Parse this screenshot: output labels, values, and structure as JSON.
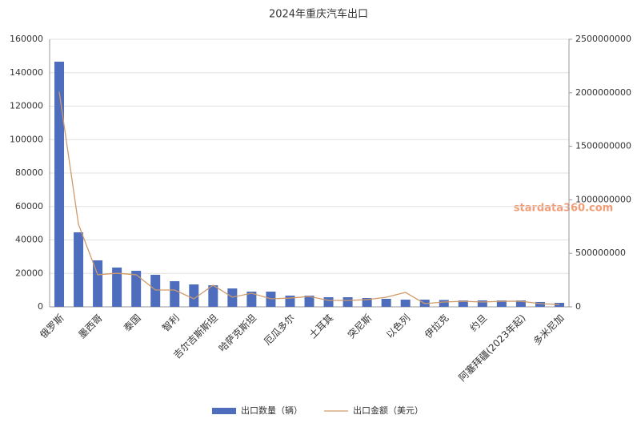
{
  "chart_data": {
    "type": "bar_line",
    "title": "2024年重庆汽车出口",
    "watermark": "stardata360.com",
    "categories": [
      "俄罗斯",
      null,
      "墨西哥",
      null,
      "泰国",
      null,
      "智利",
      null,
      "吉尔吉斯斯坦",
      null,
      "哈萨克斯坦",
      null,
      "厄瓜多尔",
      null,
      "土耳其",
      null,
      "突尼斯",
      null,
      "以色列",
      null,
      "伊拉克",
      null,
      "约旦",
      null,
      "阿塞拜疆(2023年起)",
      null,
      "多米尼加"
    ],
    "series": [
      {
        "name": "出口数量（辆）",
        "type": "bar",
        "color": "#4e6ebd",
        "axis": "y",
        "values": [
          146600,
          44550,
          27800,
          23500,
          21550,
          19160,
          15330,
          13400,
          12900,
          11000,
          9100,
          9100,
          6700,
          6700,
          5750,
          5750,
          5270,
          4800,
          4300,
          4300,
          4100,
          3830,
          3830,
          3830,
          3830,
          2900,
          2400
        ]
      },
      {
        "name": "出口金额（美元）",
        "type": "line",
        "color": "#d09a6a",
        "axis": "y2",
        "values": [
          2010000000,
          771000000,
          300000000,
          314000000,
          300000000,
          157000000,
          157000000,
          75000000,
          202000000,
          90000000,
          127000000,
          75000000,
          82000000,
          97000000,
          60000000,
          60000000,
          67000000,
          90000000,
          135000000,
          30000000,
          45000000,
          52000000,
          45000000,
          52000000,
          52000000,
          30000000,
          22000000
        ]
      }
    ],
    "ylim": [
      0,
      160000
    ],
    "yticks": [
      0,
      20000,
      40000,
      60000,
      80000,
      100000,
      120000,
      140000,
      160000
    ],
    "y2lim": [
      0,
      2500000000
    ],
    "y2ticks": [
      0,
      500000000,
      1000000000,
      1500000000,
      2000000000,
      2500000000
    ],
    "grid": true,
    "legend": "bottom"
  }
}
